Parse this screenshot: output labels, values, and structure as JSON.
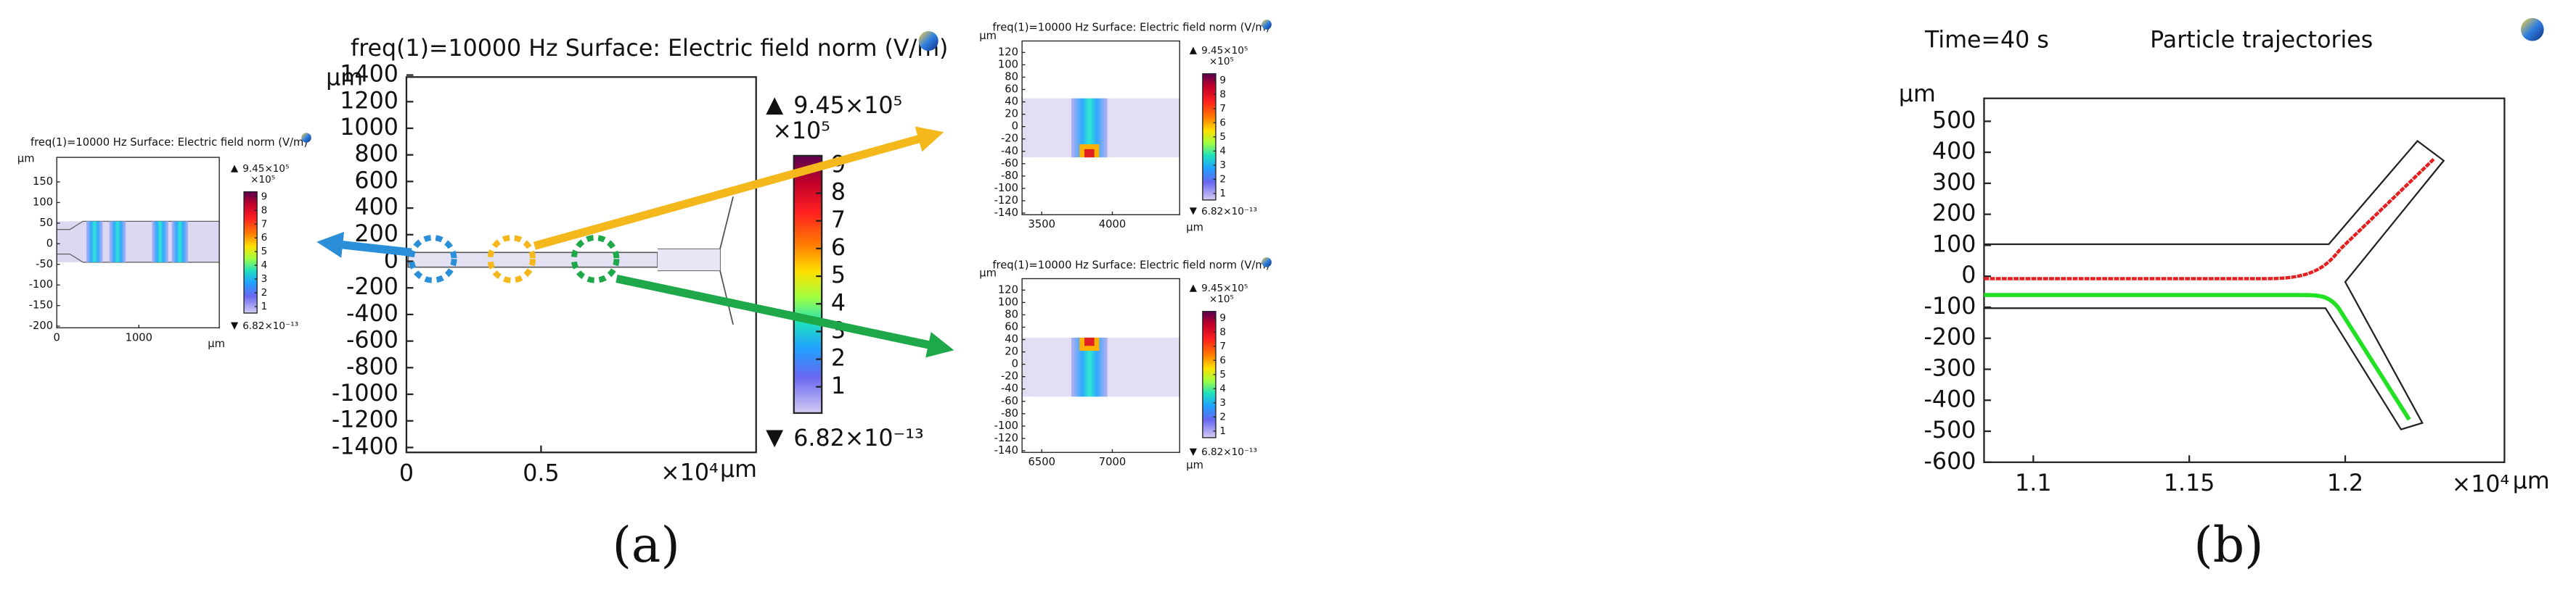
{
  "panel_a": {
    "main": {
      "title": "freq(1)=10000 Hz  Surface: Electric field norm (V/m)",
      "y_unit": "μm",
      "yticks": [
        1400,
        1200,
        1000,
        800,
        600,
        400,
        200,
        0,
        -200,
        -400,
        -600,
        -800,
        -1000,
        -1200,
        -1400
      ],
      "xticks": [
        0,
        0.5
      ],
      "x_exponent": "×10⁴",
      "x_unit": "μm",
      "colorbar": {
        "max_label": "9.45×10⁵",
        "multiplier": "×10⁵",
        "ticks": [
          9,
          8,
          7,
          6,
          5,
          4,
          3,
          2,
          1
        ],
        "min_label": "6.82×10⁻¹³"
      }
    },
    "inset_left": {
      "title": "freq(1)=10000 Hz  Surface: Electric field norm (V/m)",
      "y_unit": "μm",
      "yticks": [
        150,
        100,
        50,
        0,
        -50,
        -100,
        -150,
        -200
      ],
      "xticks": [
        0,
        1000
      ],
      "x_unit": "μm",
      "colorbar": {
        "max_label": "9.45×10⁵",
        "multiplier": "×10⁵",
        "ticks": [
          9,
          8,
          7,
          6,
          5,
          4,
          3,
          2,
          1
        ],
        "min_label": "6.82×10⁻¹³"
      }
    },
    "inset_top_right": {
      "title": "freq(1)=10000 Hz  Surface: Electric field norm (V/m)",
      "y_unit": "μm",
      "yticks": [
        120,
        100,
        80,
        60,
        40,
        20,
        0,
        -20,
        -40,
        -60,
        -80,
        -100,
        -120,
        -140
      ],
      "xticks": [
        3500,
        4000
      ],
      "x_unit": "μm",
      "colorbar": {
        "max_label": "9.45×10⁵",
        "multiplier": "×10⁵",
        "ticks": [
          9,
          8,
          7,
          6,
          5,
          4,
          3,
          2,
          1
        ],
        "min_label": "6.82×10⁻¹³"
      }
    },
    "inset_bottom_right": {
      "title": "freq(1)=10000 Hz  Surface: Electric field norm (V/m)",
      "y_unit": "μm",
      "yticks": [
        120,
        100,
        80,
        60,
        40,
        20,
        0,
        -20,
        -40,
        -60,
        -80,
        -100,
        -120,
        -140
      ],
      "xticks": [
        6500,
        7000
      ],
      "x_unit": "μm",
      "colorbar": {
        "max_label": "9.45×10⁵",
        "multiplier": "×10⁵",
        "ticks": [
          9,
          8,
          7,
          6,
          5,
          4,
          3,
          2,
          1
        ],
        "min_label": "6.82×10⁻¹³"
      }
    },
    "label": "(a)"
  },
  "panel_b": {
    "time": "Time=40 s",
    "title": "Particle trajectories",
    "y_unit": "μm",
    "yticks": [
      500,
      400,
      300,
      200,
      100,
      0,
      -100,
      -200,
      -300,
      -400,
      -500,
      -600
    ],
    "xticks": [
      1.1,
      1.15,
      1.2
    ],
    "x_exponent": "×10⁴",
    "x_unit": "μm",
    "label": "(b)"
  }
}
